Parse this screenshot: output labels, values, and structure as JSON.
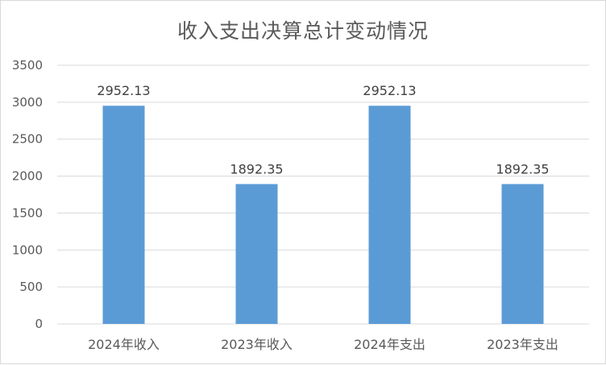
{
  "chart_data": {
    "type": "bar",
    "title": "收入支出决算总计变动情况",
    "categories": [
      "2024年收入",
      "2023年收入",
      "2024年支出",
      "2023年支出"
    ],
    "values": [
      2952.13,
      1892.35,
      2952.13,
      1892.35
    ],
    "data_labels": [
      "2952.13",
      "1892.35",
      "2952.13",
      "1892.35"
    ],
    "yticks": [
      "0",
      "500",
      "1000",
      "1500",
      "2000",
      "2500",
      "3000",
      "3500"
    ],
    "ylim": [
      0,
      3500
    ],
    "xlabel": "",
    "ylabel": "",
    "grid": true,
    "legend": "none",
    "bar_color": "#5b9bd5",
    "grid_color": "#d9d9d9"
  }
}
